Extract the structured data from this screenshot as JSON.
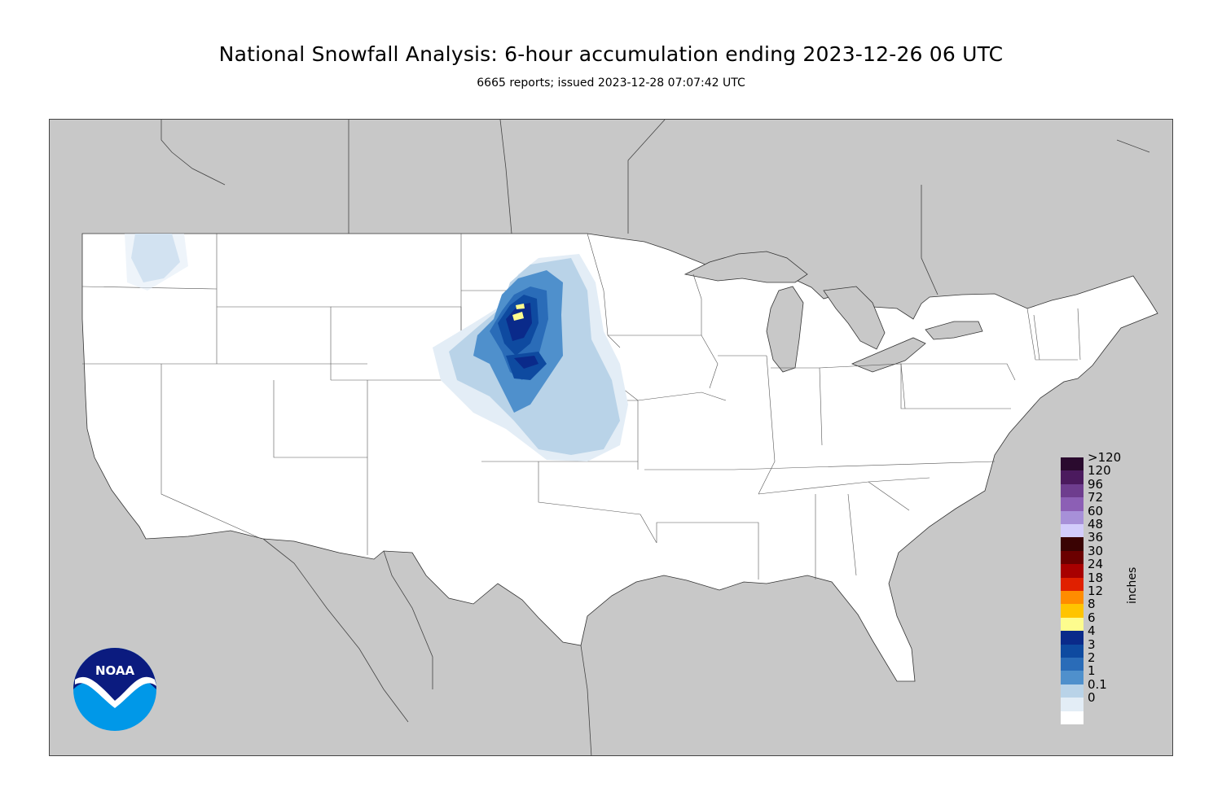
{
  "map": {
    "title": "National Snowfall Analysis: 6-hour accumulation ending 2023-12-26 06 UTC",
    "subtitle": "6665 reports; issued 2023-12-28 07:07:42 UTC",
    "units": "inches",
    "logo_text": "NOAA",
    "colors": {
      "land_background": "#c8c8c8",
      "us_land": "#ffffff",
      "water": "#c8c8c8"
    },
    "legend": [
      {
        "label": ">120",
        "color": "#2a0a2e"
      },
      {
        "label": "120",
        "color": "#4b1a5e"
      },
      {
        "label": "96",
        "color": "#6e3d8e"
      },
      {
        "label": "72",
        "color": "#8c5fb5"
      },
      {
        "label": "60",
        "color": "#a790d8"
      },
      {
        "label": "48",
        "color": "#d2ccfb"
      },
      {
        "label": "36",
        "color": "#3a0303"
      },
      {
        "label": "30",
        "color": "#6b0000"
      },
      {
        "label": "24",
        "color": "#a80000"
      },
      {
        "label": "18",
        "color": "#e02000"
      },
      {
        "label": "12",
        "color": "#ff8c00"
      },
      {
        "label": "8",
        "color": "#ffc400"
      },
      {
        "label": "6",
        "color": "#fdfc8e"
      },
      {
        "label": "4",
        "color": "#0a2a8a"
      },
      {
        "label": "3",
        "color": "#0e4aa0"
      },
      {
        "label": "2",
        "color": "#2a6cb8"
      },
      {
        "label": "1",
        "color": "#4f90cc"
      },
      {
        "label": "0.1",
        "color": "#b9d3e8"
      },
      {
        "label": "0",
        "color": "#e3edf6"
      }
    ],
    "zero_color": "#ffffff"
  }
}
